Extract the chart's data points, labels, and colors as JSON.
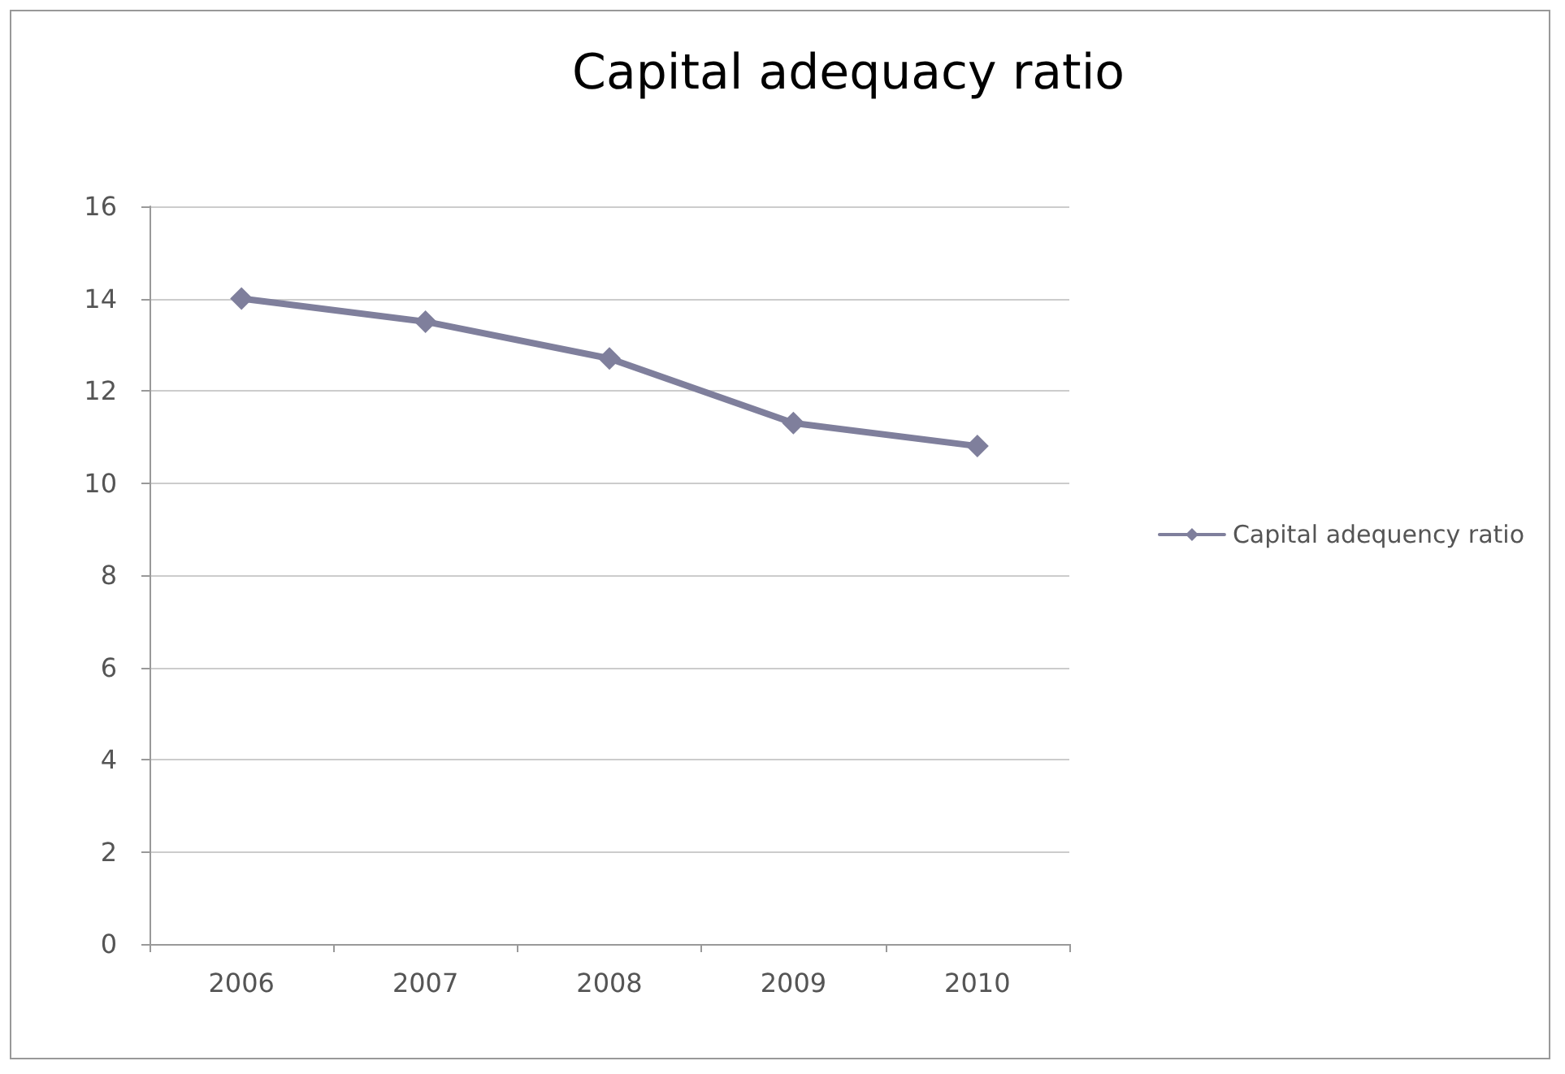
{
  "chart_data": {
    "type": "line",
    "title": "Capital adequacy ratio",
    "categories": [
      "2006",
      "2007",
      "2008",
      "2009",
      "2010"
    ],
    "series": [
      {
        "name": "Capital adequency ratio",
        "color": "#7f7f9c",
        "values": [
          14.0,
          13.5,
          12.7,
          11.3,
          10.8
        ]
      }
    ],
    "ylim": [
      0,
      16
    ],
    "yticks": [
      0,
      2,
      4,
      6,
      8,
      10,
      12,
      14,
      16
    ],
    "grid": "y",
    "legend": "right",
    "marker": "diamond",
    "line_style": "solid"
  }
}
